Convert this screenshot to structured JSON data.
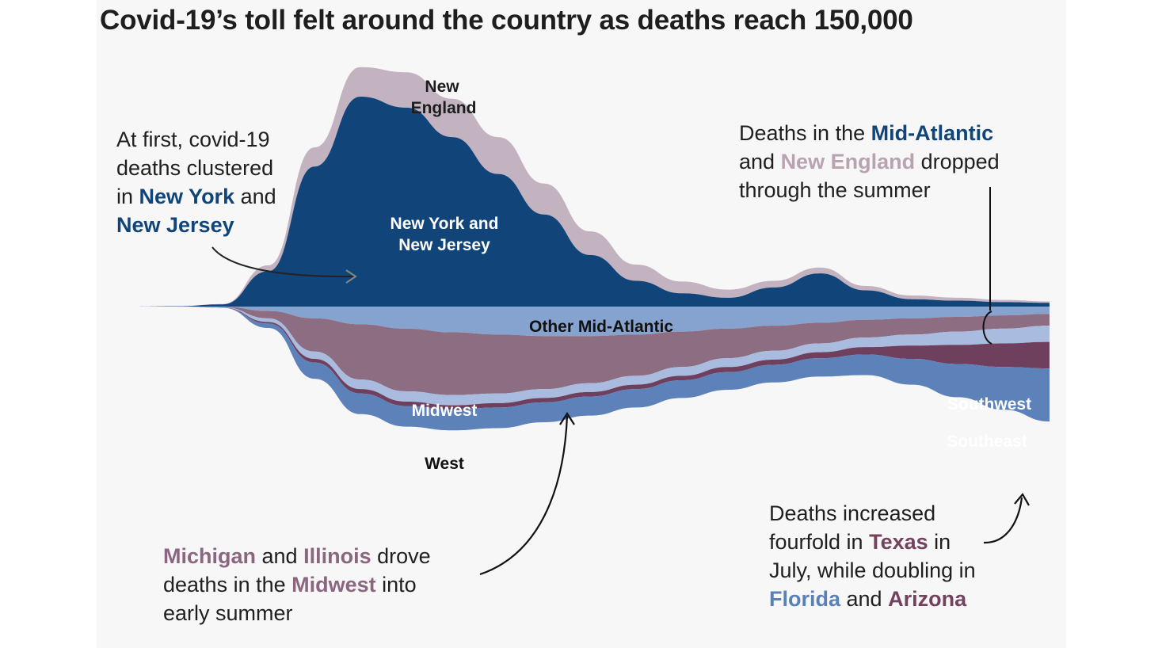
{
  "title": "Covid-19’s toll felt around the country as deaths reach 150,000",
  "colors": {
    "new_england": "#c3b2c0",
    "ny_nj": "#114478",
    "other_mid_atlantic": "#86a3cf",
    "midwest": "#8d6d81",
    "west": "#a9bcdf",
    "southwest": "#6e405e",
    "southeast": "#5d82ba",
    "background": "#f7f7f8"
  },
  "chart_data": {
    "type": "area",
    "subtype": "streamgraph",
    "x": [
      0,
      5,
      10,
      15,
      20,
      25,
      30,
      35,
      40,
      45,
      50,
      55,
      60,
      65,
      70,
      75,
      80,
      85,
      90,
      95,
      100
    ],
    "series": [
      {
        "name": "New England",
        "label": "New England",
        "values": [
          0,
          0,
          0.5,
          8,
          26,
          40,
          48,
          52,
          50,
          42,
          32,
          22,
          16,
          11,
          9,
          8,
          6,
          5,
          4,
          3,
          2
        ]
      },
      {
        "name": "New York and New Jersey",
        "label": "New York and New Jersey",
        "values": [
          0,
          0.5,
          3,
          48,
          190,
          285,
          270,
          230,
          180,
          125,
          70,
          35,
          18,
          12,
          26,
          45,
          22,
          10,
          8,
          6,
          5
        ]
      },
      {
        "name": "Other Mid-Atlantic",
        "label": "Other Mid-Atlantic",
        "values": [
          0,
          0,
          0.3,
          6,
          16,
          24,
          30,
          35,
          38,
          40,
          40,
          38,
          34,
          30,
          26,
          22,
          18,
          16,
          14,
          12,
          10
        ]
      },
      {
        "name": "Midwest",
        "label": "Midwest",
        "values": [
          0,
          0,
          0.5,
          10,
          45,
          75,
          85,
          85,
          80,
          72,
          64,
          56,
          48,
          40,
          34,
          28,
          24,
          22,
          20,
          18,
          16
        ]
      },
      {
        "name": "West",
        "label": "West",
        "values": [
          0,
          0,
          0.3,
          5,
          10,
          13,
          14,
          14,
          13,
          12,
          12,
          12,
          12,
          12,
          12,
          12,
          13,
          15,
          18,
          20,
          22
        ]
      },
      {
        "name": "Southwest",
        "label": "Southwest",
        "values": [
          0,
          0,
          0.2,
          2,
          5,
          6,
          6,
          6,
          6,
          6,
          6,
          6,
          6,
          7,
          7,
          8,
          10,
          18,
          26,
          32,
          36
        ]
      },
      {
        "name": "Southeast",
        "label": "Southeast",
        "values": [
          0,
          0,
          0.4,
          6,
          22,
          28,
          28,
          28,
          28,
          27,
          26,
          25,
          24,
          24,
          24,
          25,
          28,
          35,
          45,
          58,
          72
        ]
      }
    ]
  },
  "annotations": {
    "left": {
      "l1": "At first, covid-19",
      "l2": "deaths clustered",
      "l3a": "in ",
      "l3b": "New York",
      "l3c": " and",
      "l4": "New Jersey"
    },
    "top_right": {
      "l1a": "Deaths in the ",
      "l1b": "Mid-Atlantic",
      "l2a": "and ",
      "l2b": "New England",
      "l2c": " dropped",
      "l3": "through the summer"
    },
    "bottom_left": {
      "l1a": "Michigan",
      "l1b": " and ",
      "l1c": "Illinois",
      "l1d": " drove",
      "l2a": "deaths in the ",
      "l2b": "Midwest",
      "l2c": " into",
      "l3": "early summer"
    },
    "bottom_right": {
      "l1": "Deaths increased",
      "l2a": "fourfold in ",
      "l2b": "Texas",
      "l2c": " in",
      "l3": "July, while doubling in",
      "l4a": "Florida",
      "l4b": " and ",
      "l4c": "Arizona"
    }
  },
  "stream_labels": {
    "new_england_1": "New",
    "new_england_2": "England",
    "ny_1": "New York and",
    "ny_2": "New Jersey",
    "other_mid_atlantic": "Other Mid-Atlantic",
    "midwest": "Midwest",
    "west": "West",
    "southwest": "Southwest",
    "southeast": "Southeast"
  }
}
